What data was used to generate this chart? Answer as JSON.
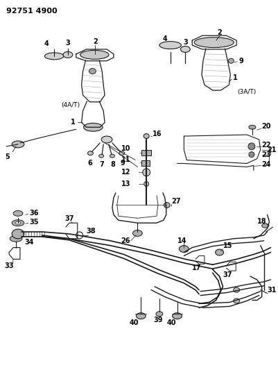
{
  "title": "92751 4900",
  "bg_color": "#ffffff",
  "line_color": "#1a1a1a",
  "label_color": "#000000",
  "title_fontsize": 8,
  "label_fontsize": 6.5,
  "bold_label_fontsize": 7,
  "fig_width": 4.02,
  "fig_height": 5.33,
  "dpi": 100,
  "4AT_label": "(4A/T)",
  "3AT_label": "(3A/T)"
}
